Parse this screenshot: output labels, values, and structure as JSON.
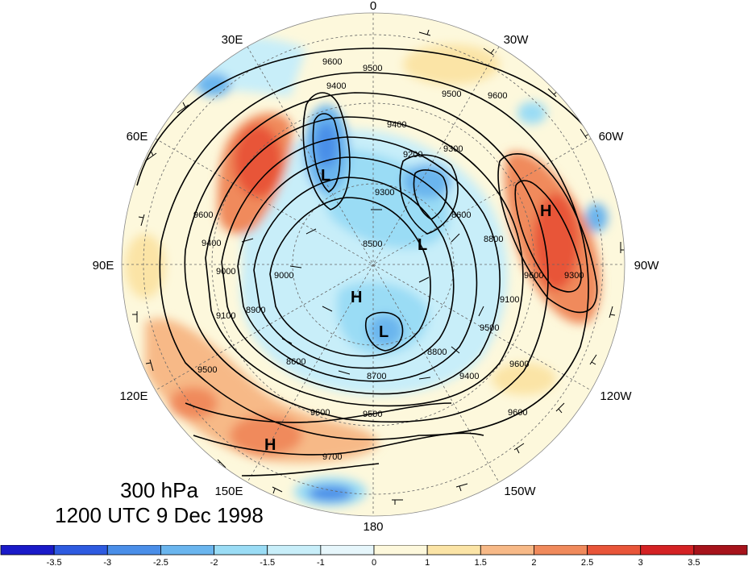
{
  "map": {
    "level": "300 hPa",
    "valid_time": "1200 UTC 9 Dec 1998",
    "projection": "north-polar-stereographic",
    "longitude_labels": [
      "0",
      "30W",
      "60W",
      "90W",
      "120W",
      "150W",
      "180",
      "150E",
      "120E",
      "90E",
      "60E",
      "30E"
    ],
    "contour_labels": [
      "9600",
      "9500",
      "9400",
      "9300",
      "9200",
      "9100",
      "9000",
      "8900",
      "8800",
      "8700",
      "8600",
      "8500",
      "9700"
    ],
    "centers": [
      {
        "label": "L",
        "type": "low"
      },
      {
        "label": "L",
        "type": "low"
      },
      {
        "label": "L",
        "type": "low"
      },
      {
        "label": "H",
        "type": "high"
      },
      {
        "label": "H",
        "type": "high"
      },
      {
        "label": "H",
        "type": "high"
      }
    ]
  },
  "colorbar": {
    "tick_labels": [
      "-3.5",
      "-3",
      "-2.5",
      "-2",
      "-1.5",
      "-1",
      "0",
      "1",
      "1.5",
      "2",
      "2.5",
      "3",
      "3.5"
    ],
    "colors": [
      "#1a1ac8",
      "#2e5be0",
      "#4a8ee8",
      "#6ab5ee",
      "#9adcf5",
      "#c8eef9",
      "#e6f6fb",
      "#fdf8dc",
      "#fbe4a6",
      "#f7b987",
      "#f08a5c",
      "#e85539",
      "#d42224",
      "#a6131b"
    ]
  }
}
